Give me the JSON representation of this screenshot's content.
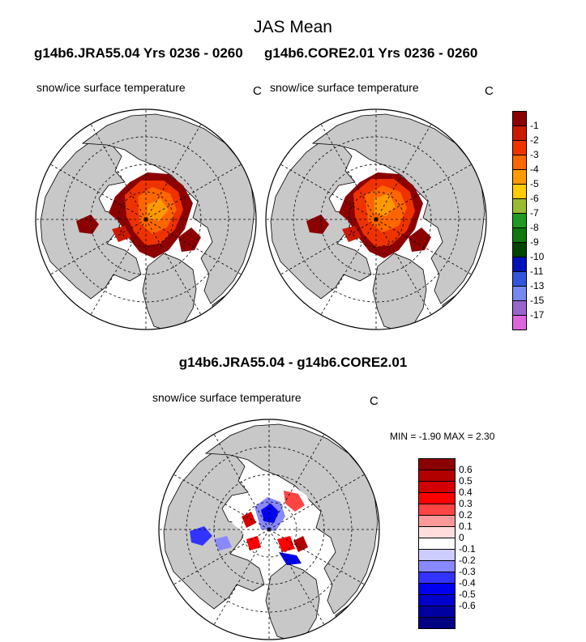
{
  "title": "JAS Mean",
  "top_panels": [
    {
      "case": "g14b6.JRA55.04  Yrs 0236 - 0260",
      "field": "snow/ice surface temperature",
      "units": "C"
    },
    {
      "case": "g14b6.CORE2.01  Yrs 0236 - 0260",
      "field": "snow/ice surface temperature",
      "units": "C"
    }
  ],
  "top_colorbar": {
    "levels": [
      "-1",
      "-2",
      "-3",
      "-4",
      "-5",
      "-6",
      "-7",
      "-8",
      "-9",
      "-10",
      "-11",
      "-13",
      "-15",
      "-17"
    ],
    "colors": [
      "#8c0000",
      "#cc1a00",
      "#ee3300",
      "#ff6600",
      "#ff9900",
      "#ffcc00",
      "#99bb33",
      "#229922",
      "#117711",
      "#004400",
      "#0011bb",
      "#3355dd",
      "#7788ee",
      "#9966cc",
      "#dd66dd"
    ]
  },
  "diff_panel": {
    "title": "g14b6.JRA55.04 - g14b6.CORE2.01",
    "field": "snow/ice surface temperature",
    "units": "C",
    "minmax_text": "MIN =  -1.90 MAX =   2.30"
  },
  "diff_colorbar": {
    "levels": [
      "0.6",
      "0.5",
      "0.4",
      "0.3",
      "0.2",
      "0.1",
      "0",
      "-0.1",
      "-0.2",
      "-0.3",
      "-0.4",
      "-0.5",
      "-0.6"
    ],
    "colors": [
      "#8b0000",
      "#b20000",
      "#d40000",
      "#ff0000",
      "#ff4444",
      "#ff9999",
      "#ffdddd",
      "#ffffff",
      "#ccccff",
      "#8888ff",
      "#3333ff",
      "#0000ee",
      "#0000cc",
      "#0000a0",
      "#000080"
    ]
  },
  "colors": {
    "land": "#c8c8c8",
    "ocean": "#ffffff"
  }
}
